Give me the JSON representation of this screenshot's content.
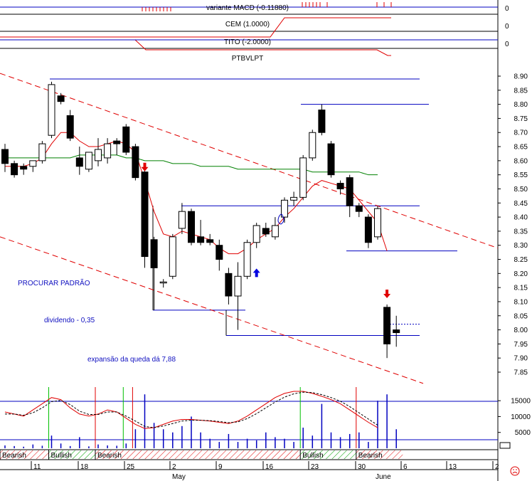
{
  "indicators": {
    "macd_label": "variante MACD (-0.11880)",
    "cem_label": "CEM (1.0000)",
    "tito_label": "TITO (-2.0000)",
    "zero_value": "0"
  },
  "symbol": "PTBVLPT",
  "annotations": {
    "pattern": "PROCURAR PADRÃO",
    "dividend": "dividendo - 0,35",
    "expansion": "expansão da queda dá 7,88"
  },
  "colors": {
    "bull": "#ffffff",
    "bear": "#000000",
    "ma_short": "#e00000",
    "ma_long": "#008000",
    "channel": "#e00000",
    "level_lines": "#0000c0",
    "bearish_band": "#e00000",
    "bullish_band": "#00a000"
  },
  "chart_data": {
    "type": "candlestick",
    "title": "PTBVLPT",
    "y_ticks": [
      "8.90",
      "8.85",
      "8.80",
      "8.75",
      "8.70",
      "8.65",
      "8.60",
      "8.55",
      "8.50",
      "8.45",
      "8.40",
      "8.35",
      "8.30",
      "8.25",
      "8.20",
      "8.15",
      "8.10",
      "8.05",
      "8.00",
      "7.95",
      "7.90",
      "7.85"
    ],
    "ylim": [
      7.82,
      8.92
    ],
    "x_ticks": [
      "11",
      "18",
      "25",
      "2",
      "9",
      "16",
      "23",
      "30",
      "6",
      "13",
      "2"
    ],
    "x_month_labels": [
      "May",
      "June"
    ],
    "candles": [
      {
        "o": 8.64,
        "h": 8.66,
        "l": 8.56,
        "c": 8.59
      },
      {
        "o": 8.59,
        "h": 8.6,
        "l": 8.54,
        "c": 8.55
      },
      {
        "o": 8.58,
        "h": 8.59,
        "l": 8.55,
        "c": 8.57
      },
      {
        "o": 8.58,
        "h": 8.6,
        "l": 8.56,
        "c": 8.6
      },
      {
        "o": 8.6,
        "h": 8.67,
        "l": 8.59,
        "c": 8.66
      },
      {
        "o": 8.69,
        "h": 8.88,
        "l": 8.68,
        "c": 8.87
      },
      {
        "o": 8.83,
        "h": 8.84,
        "l": 8.8,
        "c": 8.81
      },
      {
        "o": 8.76,
        "h": 8.78,
        "l": 8.67,
        "c": 8.68
      },
      {
        "o": 8.61,
        "h": 8.65,
        "l": 8.55,
        "c": 8.58
      },
      {
        "o": 8.57,
        "h": 8.63,
        "l": 8.56,
        "c": 8.63
      },
      {
        "o": 8.6,
        "h": 8.68,
        "l": 8.58,
        "c": 8.64
      },
      {
        "o": 8.61,
        "h": 8.68,
        "l": 8.59,
        "c": 8.66
      },
      {
        "o": 8.67,
        "h": 8.68,
        "l": 8.62,
        "c": 8.66
      },
      {
        "o": 8.72,
        "h": 8.73,
        "l": 8.62,
        "c": 8.63
      },
      {
        "o": 8.65,
        "h": 8.66,
        "l": 8.53,
        "c": 8.54
      },
      {
        "o": 8.56,
        "h": 8.57,
        "l": 8.22,
        "c": 8.26
      },
      {
        "o": 8.32,
        "h": 8.33,
        "l": 8.07,
        "c": 8.22
      },
      {
        "o": 8.17,
        "h": 8.18,
        "l": 8.15,
        "c": 8.17
      },
      {
        "o": 8.19,
        "h": 8.34,
        "l": 8.18,
        "c": 8.33
      },
      {
        "o": 8.36,
        "h": 8.45,
        "l": 8.34,
        "c": 8.42
      },
      {
        "o": 8.42,
        "h": 8.43,
        "l": 8.3,
        "c": 8.31
      },
      {
        "o": 8.33,
        "h": 8.39,
        "l": 8.3,
        "c": 8.31
      },
      {
        "o": 8.32,
        "h": 8.34,
        "l": 8.3,
        "c": 8.31
      },
      {
        "o": 8.3,
        "h": 8.32,
        "l": 8.21,
        "c": 8.25
      },
      {
        "o": 8.2,
        "h": 8.22,
        "l": 8.09,
        "c": 8.12
      },
      {
        "o": 8.12,
        "h": 8.24,
        "l": 8.0,
        "c": 8.19
      },
      {
        "o": 8.19,
        "h": 8.32,
        "l": 8.18,
        "c": 8.31
      },
      {
        "o": 8.31,
        "h": 8.38,
        "l": 8.29,
        "c": 8.37
      },
      {
        "o": 8.36,
        "h": 8.38,
        "l": 8.33,
        "c": 8.34
      },
      {
        "o": 8.33,
        "h": 8.4,
        "l": 8.32,
        "c": 8.37
      },
      {
        "o": 8.4,
        "h": 8.47,
        "l": 8.38,
        "c": 8.46
      },
      {
        "o": 8.46,
        "h": 8.49,
        "l": 8.44,
        "c": 8.47
      },
      {
        "o": 8.47,
        "h": 8.62,
        "l": 8.46,
        "c": 8.61
      },
      {
        "o": 8.61,
        "h": 8.71,
        "l": 8.6,
        "c": 8.7
      },
      {
        "o": 8.78,
        "h": 8.8,
        "l": 8.69,
        "c": 8.7
      },
      {
        "o": 8.66,
        "h": 8.67,
        "l": 8.54,
        "c": 8.55
      },
      {
        "o": 8.52,
        "h": 8.53,
        "l": 8.48,
        "c": 8.5
      },
      {
        "o": 8.54,
        "h": 8.55,
        "l": 8.4,
        "c": 8.44
      },
      {
        "o": 8.44,
        "h": 8.45,
        "l": 8.4,
        "c": 8.42
      },
      {
        "o": 8.4,
        "h": 8.41,
        "l": 8.29,
        "c": 8.31
      },
      {
        "o": 8.33,
        "h": 8.44,
        "l": 8.32,
        "c": 8.43
      },
      {
        "o": 8.08,
        "h": 8.09,
        "l": 7.9,
        "c": 7.95
      },
      {
        "o": 8.0,
        "h": 8.05,
        "l": 7.94,
        "c": 7.99
      }
    ],
    "ma_short": [
      8.58,
      8.58,
      8.58,
      8.59,
      8.61,
      8.66,
      8.7,
      8.7,
      8.67,
      8.65,
      8.65,
      8.66,
      8.67,
      8.66,
      8.63,
      8.53,
      8.42,
      8.34,
      8.33,
      8.35,
      8.34,
      8.33,
      8.32,
      8.29,
      8.27,
      8.27,
      8.29,
      8.32,
      8.34,
      8.36,
      8.4,
      8.43,
      8.47,
      8.51,
      8.53,
      8.52,
      8.51,
      8.5,
      8.46,
      8.42,
      8.38,
      8.28
    ],
    "ma_long": [
      8.61,
      8.61,
      8.61,
      8.61,
      8.61,
      8.61,
      8.61,
      8.61,
      8.62,
      8.62,
      8.62,
      8.62,
      8.62,
      8.61,
      8.61,
      8.6,
      8.6,
      8.6,
      8.59,
      8.59,
      8.59,
      8.58,
      8.58,
      8.58,
      8.58,
      8.57,
      8.57,
      8.57,
      8.57,
      8.57,
      8.57,
      8.57,
      8.57,
      8.56,
      8.56,
      8.56,
      8.56,
      8.56,
      8.56,
      8.55,
      8.55
    ],
    "horizontal_levels": [
      8.89,
      8.8,
      8.44,
      8.28,
      8.07,
      7.98
    ],
    "dotted_level": 8.02,
    "channel_upper": {
      "from": 8.91,
      "to": 8.29
    },
    "channel_lower": {
      "from": 8.33,
      "to": 7.81
    },
    "arrows": [
      {
        "dir": "down",
        "color": "red",
        "candle": 15,
        "y": 8.57
      },
      {
        "dir": "up",
        "color": "blue",
        "candle": 27,
        "y": 8.21
      },
      {
        "dir": "down",
        "color": "red",
        "candle": 41,
        "y": 8.12
      }
    ],
    "volume": {
      "ticks": [
        "15000",
        "10000",
        "5000"
      ],
      "ylim": [
        0,
        17500
      ],
      "bars": [
        900,
        700,
        500,
        1200,
        800,
        4000,
        1500,
        700,
        3500,
        600,
        1200,
        900,
        800,
        1500,
        6000,
        17000,
        8000,
        6000,
        5000,
        7000,
        10000,
        5000,
        3000,
        2000,
        4500,
        2000,
        3000,
        2500,
        5000,
        3500,
        3000,
        2000,
        6500,
        4000,
        14000,
        5000,
        3500,
        4500,
        5000,
        2000,
        15000,
        17000,
        6000
      ],
      "osc_solid": [
        0.5,
        0.45,
        0.4,
        0.55,
        0.7,
        0.85,
        0.8,
        0.6,
        0.45,
        0.4,
        0.45,
        0.55,
        0.5,
        0.35,
        0.2,
        0.1,
        0.12,
        0.2,
        0.28,
        0.32,
        0.32,
        0.3,
        0.28,
        0.25,
        0.22,
        0.28,
        0.4,
        0.55,
        0.7,
        0.85,
        0.95,
        1.0,
        1.0,
        0.95,
        0.88,
        0.8,
        0.7,
        0.55,
        0.4,
        0.25,
        0.12
      ],
      "osc_dash": [
        0.45,
        0.45,
        0.42,
        0.48,
        0.6,
        0.75,
        0.78,
        0.68,
        0.52,
        0.44,
        0.44,
        0.5,
        0.5,
        0.4,
        0.28,
        0.15,
        0.12,
        0.16,
        0.22,
        0.28,
        0.3,
        0.3,
        0.29,
        0.27,
        0.24,
        0.26,
        0.34,
        0.46,
        0.6,
        0.74,
        0.86,
        0.94,
        0.98,
        0.97,
        0.92,
        0.85,
        0.76,
        0.63,
        0.48,
        0.33,
        0.18
      ],
      "green_verticals": [
        5,
        13,
        32
      ],
      "red_verticals": [
        10,
        14,
        38
      ]
    },
    "bands": [
      {
        "label": "Bearish",
        "kind": "bear",
        "from": 0,
        "to": 5
      },
      {
        "label": "Bullish",
        "kind": "bull",
        "from": 5,
        "to": 10
      },
      {
        "label": "Bearish",
        "kind": "bear",
        "from": 10,
        "to": 32
      },
      {
        "label": "Bullish",
        "kind": "bull",
        "from": 32,
        "to": 38
      },
      {
        "label": "Bearish",
        "kind": "bear",
        "from": 38,
        "to": 43
      }
    ]
  }
}
